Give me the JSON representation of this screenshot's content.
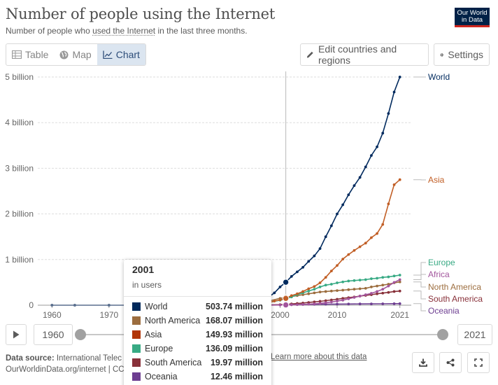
{
  "header": {
    "title": "Number of people using the Internet",
    "subtitle_pre": "Number of people who ",
    "subtitle_link": "used the Internet",
    "subtitle_post": " in the last three months.",
    "logo_line1": "Our World",
    "logo_line2": "in Data"
  },
  "tabs": [
    {
      "label": "Table",
      "icon": "table-icon",
      "active": false
    },
    {
      "label": "Map",
      "icon": "globe-icon",
      "active": false
    },
    {
      "label": "Chart",
      "icon": "line-chart-icon",
      "active": true
    }
  ],
  "toolbar": {
    "edit_label": "Edit countries and regions",
    "settings_label": "Settings"
  },
  "timeline": {
    "start_year": "1960",
    "end_year": "2021"
  },
  "footer": {
    "source_label": "Data source:",
    "source_text": " International Telec",
    "source_line2": "OurWorldinData.org/internet | CC",
    "learn_more": "Learn more about this data"
  },
  "colors": {
    "World": "#00295b",
    "Asia": "#c15065",
    "Europe": "#2c8465",
    "Africa": "#a2559c",
    "North America": "#9a5129",
    "South America": "#6d3e91",
    "Oceania": "#18470f"
  },
  "tooltip": {
    "year": "2001",
    "unit": "in users",
    "rows": [
      {
        "name": "World",
        "value": "503.74 million",
        "color": "#00295b"
      },
      {
        "name": "North America",
        "value": "168.07 million",
        "color": "#9c6d3e"
      },
      {
        "name": "Asia",
        "value": "149.93 million",
        "color": "#b13507"
      },
      {
        "name": "Europe",
        "value": "136.09 million",
        "color": "#38aa84"
      },
      {
        "name": "South America",
        "value": "19.97 million",
        "color": "#883039"
      },
      {
        "name": "Oceania",
        "value": "12.46 million",
        "color": "#6d3e91"
      }
    ]
  },
  "chart_data": {
    "type": "line",
    "title": "Number of people using the Internet",
    "subtitle": "Number of people who used the Internet in the last three months.",
    "xlim": [
      1958,
      2023
    ],
    "ylim": [
      0,
      5000000000
    ],
    "x_ticks": [
      1960,
      1970,
      2000,
      2010,
      2021
    ],
    "x_tick_labels": [
      "1960",
      "1970",
      "2000",
      "2010",
      "2021"
    ],
    "y_ticks": [
      0,
      1000000000,
      2000000000,
      3000000000,
      4000000000,
      5000000000
    ],
    "y_tick_labels": [
      "0",
      "1 billion",
      "2 billion",
      "3 billion",
      "4 billion",
      "5 billion"
    ],
    "hover_year": 2001,
    "grid": "horizontal dotted",
    "legend": "end-of-line labels right",
    "series": [
      {
        "name": "World",
        "color": "#002a5e",
        "x": [
          1990,
          1991,
          1992,
          1993,
          1994,
          1995,
          1996,
          1997,
          1998,
          1999,
          2000,
          2001,
          2002,
          2003,
          2004,
          2005,
          2006,
          2007,
          2008,
          2009,
          2010,
          2011,
          2012,
          2013,
          2014,
          2015,
          2016,
          2017,
          2018,
          2019,
          2020,
          2021
        ],
        "y": [
          2600000,
          4400000,
          7000000,
          10000000,
          20000000,
          40000000,
          75000000,
          120000000,
          180000000,
          270000000,
          400000000,
          503740000,
          630000000,
          730000000,
          830000000,
          960000000,
          1080000000,
          1240000000,
          1500000000,
          1740000000,
          2000000000,
          2200000000,
          2420000000,
          2620000000,
          2800000000,
          3030000000,
          3280000000,
          3470000000,
          3770000000,
          4200000000,
          4670000000,
          5000000000
        ]
      },
      {
        "name": "Asia",
        "color": "#c15e25",
        "x": [
          1990,
          1991,
          1992,
          1993,
          1994,
          1995,
          1996,
          1997,
          1998,
          1999,
          2000,
          2001,
          2002,
          2003,
          2004,
          2005,
          2006,
          2007,
          2008,
          2009,
          2010,
          2011,
          2012,
          2013,
          2014,
          2015,
          2016,
          2017,
          2018,
          2019,
          2020,
          2021
        ],
        "y": [
          300000,
          500000,
          800000,
          1200000,
          3000000,
          7000000,
          15000000,
          30000000,
          55000000,
          90000000,
          115000000,
          149930000,
          210000000,
          250000000,
          300000000,
          360000000,
          410000000,
          490000000,
          610000000,
          750000000,
          870000000,
          1010000000,
          1110000000,
          1200000000,
          1280000000,
          1360000000,
          1480000000,
          1570000000,
          1770000000,
          2220000000,
          2640000000,
          2750000000
        ]
      },
      {
        "name": "Europe",
        "color": "#38aa84",
        "x": [
          1990,
          1992,
          1994,
          1996,
          1998,
          2000,
          2001,
          2002,
          2003,
          2004,
          2005,
          2006,
          2007,
          2008,
          2009,
          2010,
          2011,
          2012,
          2013,
          2014,
          2015,
          2016,
          2017,
          2018,
          2019,
          2020,
          2021
        ],
        "y": [
          1000000,
          3000000,
          8000000,
          25000000,
          60000000,
          110000000,
          136090000,
          180000000,
          230000000,
          270000000,
          310000000,
          350000000,
          400000000,
          440000000,
          460000000,
          490000000,
          510000000,
          530000000,
          540000000,
          550000000,
          560000000,
          580000000,
          590000000,
          610000000,
          620000000,
          640000000,
          660000000
        ]
      },
      {
        "name": "Africa",
        "color": "#a2559c",
        "x": [
          1995,
          1998,
          2000,
          2001,
          2002,
          2003,
          2004,
          2005,
          2006,
          2007,
          2008,
          2009,
          2010,
          2011,
          2012,
          2013,
          2014,
          2015,
          2016,
          2017,
          2018,
          2019,
          2020,
          2021
        ],
        "y": [
          200000,
          1500000,
          4000000,
          6000000,
          9000000,
          12000000,
          16000000,
          22000000,
          30000000,
          40000000,
          55000000,
          70000000,
          90000000,
          110000000,
          140000000,
          170000000,
          200000000,
          230000000,
          260000000,
          300000000,
          350000000,
          420000000,
          500000000,
          560000000
        ]
      },
      {
        "name": "North America",
        "color": "#9c6d3e",
        "x": [
          1990,
          1992,
          1994,
          1996,
          1998,
          2000,
          2001,
          2002,
          2003,
          2004,
          2005,
          2006,
          2007,
          2008,
          2009,
          2010,
          2011,
          2012,
          2013,
          2014,
          2015,
          2016,
          2017,
          2018,
          2019,
          2020,
          2021
        ],
        "y": [
          2000000,
          4000000,
          10000000,
          40000000,
          90000000,
          150000000,
          168070000,
          190000000,
          210000000,
          230000000,
          250000000,
          270000000,
          290000000,
          300000000,
          310000000,
          320000000,
          330000000,
          340000000,
          350000000,
          360000000,
          370000000,
          400000000,
          420000000,
          440000000,
          460000000,
          490000000,
          510000000
        ]
      },
      {
        "name": "South America",
        "color": "#883039",
        "x": [
          1994,
          1996,
          1998,
          2000,
          2001,
          2002,
          2003,
          2004,
          2005,
          2006,
          2007,
          2008,
          2009,
          2010,
          2011,
          2012,
          2013,
          2014,
          2015,
          2016,
          2017,
          2018,
          2019,
          2020,
          2021
        ],
        "y": [
          200000,
          1000000,
          4000000,
          12000000,
          19970000,
          28000000,
          38000000,
          48000000,
          60000000,
          72000000,
          85000000,
          100000000,
          115000000,
          130000000,
          150000000,
          165000000,
          180000000,
          200000000,
          215000000,
          230000000,
          250000000,
          265000000,
          280000000,
          300000000,
          310000000
        ]
      },
      {
        "name": "Oceania",
        "color": "#6d3e91",
        "x": [
          1990,
          1994,
          1998,
          2000,
          2001,
          2002,
          2004,
          2006,
          2008,
          2010,
          2012,
          2014,
          2016,
          2018,
          2020,
          2021
        ],
        "y": [
          200000,
          1000000,
          5000000,
          9000000,
          12460000,
          14000000,
          17000000,
          19000000,
          21000000,
          24000000,
          26000000,
          28000000,
          29000000,
          31000000,
          33000000,
          34000000
        ]
      }
    ]
  }
}
